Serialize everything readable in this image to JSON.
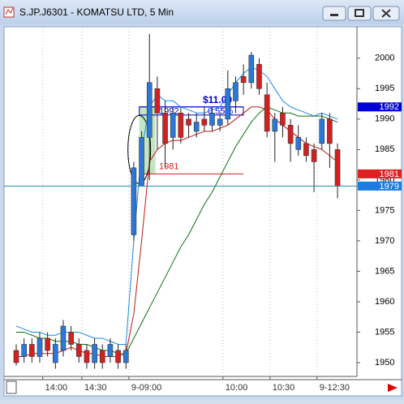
{
  "window": {
    "title": "S.JP.J6301 - KOMATSU LTD, 5 Min"
  },
  "chart_data": {
    "type": "candlestick",
    "categories": [
      null,
      null,
      null,
      null,
      "14:00",
      null,
      null,
      null,
      null,
      "14:30",
      null,
      null,
      null,
      null,
      null,
      "9-09:00",
      null,
      null,
      null,
      null,
      null,
      null,
      null,
      null,
      null,
      null,
      null,
      "10:00",
      null,
      null,
      null,
      null,
      null,
      "10:30",
      null,
      null,
      null,
      null,
      null,
      "9-12:30",
      null,
      null
    ],
    "open": [
      1952,
      1951,
      1953,
      1951,
      1954,
      1950,
      1952,
      1955,
      1953,
      1952,
      1950,
      1952,
      1951,
      1952,
      1950,
      1971,
      1979,
      1987,
      1995,
      1991,
      1987,
      1991,
      1990,
      1988,
      1990,
      1989,
      1989,
      1990,
      1993,
      1997,
      1996,
      1999,
      1994,
      1988,
      1991,
      1989,
      1985,
      1986,
      1985,
      1986,
      1990,
      1985
    ],
    "high": [
      1953,
      1954,
      1954,
      1955,
      1955,
      1954,
      1957,
      1956,
      1954,
      1953,
      1954,
      1953,
      1954,
      1953,
      1953,
      1983,
      1988,
      2004,
      1997,
      1993,
      1992,
      1992,
      1991,
      1991,
      1992,
      1992,
      1991,
      1998,
      1997,
      1999,
      2001,
      2000,
      1996,
      1991,
      1992,
      1990,
      1989,
      1987,
      1986,
      1991,
      1991,
      1986
    ],
    "low": [
      1949.5,
      1950,
      1950,
      1950,
      1951,
      1949,
      1951,
      1952,
      1950,
      1949,
      1949,
      1949,
      1950,
      1949,
      1949,
      1970,
      1979,
      1980,
      1985,
      1982,
      1985,
      1986,
      1987,
      1987,
      1988,
      1988,
      1988,
      1989,
      1991,
      1994,
      1995,
      1994,
      1987,
      1983,
      1987,
      1983,
      1984,
      1983,
      1978,
      1985,
      1982,
      1977
    ],
    "close": [
      1950,
      1953,
      1951,
      1954,
      1952,
      1953,
      1956,
      1953,
      1951,
      1950,
      1953,
      1950,
      1953,
      1950,
      1952,
      1982,
      1987,
      1996,
      1991,
      1986,
      1991,
      1987,
      1989,
      1989.5,
      1989,
      1991,
      1990,
      1995,
      1996,
      1996,
      2000.5,
      1995,
      1988,
      1990,
      1989,
      1986,
      1987,
      1984,
      1983,
      1990,
      1986,
      1979
    ],
    "up_color": "#2a78d8",
    "down_color": "#d42020",
    "series": [
      {
        "color": "#1e88e5",
        "values": [
          1956,
          1955.5,
          1955,
          1955,
          1954.5,
          1954.5,
          1955,
          1955,
          1955,
          1954.5,
          1954,
          1954,
          1953.5,
          1953,
          1953,
          1970,
          1985,
          1992,
          1994,
          1993,
          1993,
          1992,
          1991.5,
          1991,
          1991,
          1991.5,
          1992,
          1994,
          1996,
          1997.5,
          1998.5,
          1998,
          1997,
          1995,
          1993,
          1992,
          1991.5,
          1991,
          1990.5,
          1991,
          1990.5,
          1990
        ]
      },
      {
        "color": "#c01818",
        "values": [
          1951,
          1951,
          1951.5,
          1951.5,
          1951.5,
          1951.5,
          1952,
          1952.5,
          1952,
          1951.5,
          1951.5,
          1951,
          1951,
          1951,
          1951.5,
          1958,
          1970,
          1983,
          1985,
          1986,
          1986.5,
          1986.5,
          1987,
          1987.5,
          1988,
          1988,
          1988.5,
          1989,
          1990,
          1991,
          1992,
          1992,
          1991.5,
          1990,
          1989,
          1988,
          1987,
          1986,
          1985.5,
          1985,
          1984,
          1983
        ]
      },
      {
        "color": "#107010",
        "values": [
          1955,
          1955,
          1954.5,
          1954,
          1954,
          1953.5,
          1953.5,
          1953.5,
          1953,
          1953,
          1952.5,
          1952,
          1952,
          1951.5,
          1951.5,
          1954,
          1956.5,
          1959,
          1961.5,
          1964,
          1966.5,
          1969,
          1971,
          1973.5,
          1976,
          1978,
          1980.5,
          1983,
          1985.5,
          1987.5,
          1989.5,
          1991,
          1992,
          1991.5,
          1991,
          1991,
          1990.5,
          1990.5,
          1990.5,
          1990.5,
          1990,
          1989.5
        ]
      }
    ],
    "ylim": [
      1948,
      2004.9
    ],
    "yticks": [
      1950,
      1955,
      1960,
      1965,
      1970,
      1975,
      1980,
      1985,
      1990,
      1995,
      2000
    ],
    "markers": [
      {
        "value": 1992,
        "color": "#0000d8"
      },
      {
        "value": 1981,
        "color": "#e02020"
      },
      {
        "value": 1979,
        "color": "#1e7be0"
      }
    ],
    "annotations": {
      "change": "$11.00",
      "percent": "0.55%",
      "high_label": 1992,
      "low_label": 1981
    }
  }
}
